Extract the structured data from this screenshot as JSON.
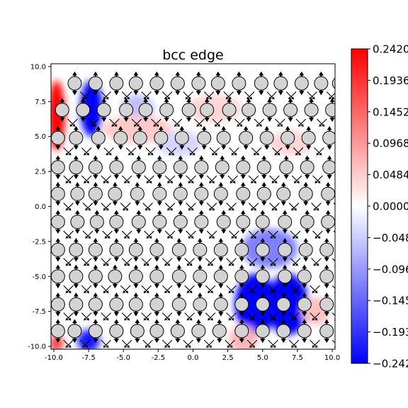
{
  "chart_data": {
    "type": "heatmap",
    "title": "bcc edge",
    "xlabel": "",
    "ylabel": "",
    "xlim": [
      -10.2,
      10.2
    ],
    "ylim": [
      -10.2,
      10.2
    ],
    "x_ticks": [
      "-10.0",
      "-7.5",
      "-5.0",
      "-2.5",
      "0.0",
      "2.5",
      "5.0",
      "7.5",
      "10.0"
    ],
    "y_ticks": [
      "10.0",
      "7.5",
      "5.0",
      "2.5",
      "0.0",
      "-2.5",
      "-5.0",
      "-7.5",
      "-10.0"
    ],
    "x_tick_values": [
      -10,
      -7.5,
      -5,
      -2.5,
      0,
      2.5,
      5,
      7.5,
      10
    ],
    "y_tick_values": [
      10,
      7.5,
      5,
      2.5,
      0,
      -2.5,
      -5,
      -7.5,
      -10
    ],
    "colorbar": {
      "colormap": "bwr",
      "min": -0.242,
      "max": 0.242,
      "tick_labels": [
        "0.2420",
        "0.1936",
        "0.1452",
        "0.0968",
        "0.0484",
        "0.0000",
        "−0.0484",
        "−0.0968",
        "−0.1452",
        "−0.1936",
        "−0.2420"
      ],
      "tick_values": [
        0.242,
        0.1936,
        0.1452,
        0.0968,
        0.0484,
        0,
        -0.0484,
        -0.0968,
        -0.1452,
        -0.1936,
        -0.242
      ],
      "colors": {
        "max": "#ff0000",
        "mid": "#ffffff",
        "min": "#0000ff"
      }
    },
    "atom_color": "#d3d3d3",
    "atom_rows": [
      {
        "y": 8.8,
        "x": [
          -8.5,
          -7.0,
          -5.5,
          -4.1,
          -2.6,
          -1.1,
          0.4,
          1.8,
          3.3,
          4.9,
          6.3,
          7.8,
          9.2,
          10.5
        ]
      },
      {
        "y": 6.9,
        "x": [
          -9.4,
          -7.9,
          -6.4,
          -4.8,
          -3.4,
          -1.9,
          -0.3,
          1.0,
          2.6,
          4.0,
          5.5,
          7.0,
          8.5,
          10.0
        ]
      },
      {
        "y": 4.9,
        "x": [
          -9.7,
          -8.4,
          -6.8,
          -5.2,
          -3.8,
          -2.3,
          -0.8,
          0.8,
          2.2,
          3.8,
          5.3,
          6.8,
          8.3,
          9.8
        ]
      },
      {
        "y": 2.8,
        "x": [
          -9.7,
          -8.4,
          -7.0,
          -5.5,
          -3.9,
          -2.4,
          -0.9,
          0.6,
          2.1,
          3.6,
          5.1,
          6.7,
          8.2,
          9.8
        ]
      },
      {
        "y": 0.9,
        "x": [
          -9.7,
          -8.3,
          -7.0,
          -5.6,
          -4.0,
          -2.4,
          -0.9,
          0.6,
          2.0,
          3.6,
          5.1,
          6.5,
          8.1,
          9.7
        ]
      },
      {
        "y": -1.1,
        "x": [
          -9.7,
          -8.3,
          -6.9,
          -5.5,
          -3.9,
          -2.4,
          -0.9,
          0.6,
          2.2,
          3.6,
          5.0,
          6.6,
          8.2,
          9.7
        ]
      },
      {
        "y": -3.1,
        "x": [
          -9.7,
          -8.4,
          -7.0,
          -5.5,
          -4.1,
          -2.6,
          -1.0,
          0.5,
          2.0,
          3.5,
          5.0,
          6.6,
          8.1,
          9.6
        ]
      },
      {
        "y": -5.0,
        "x": [
          -9.7,
          -8.4,
          -7.0,
          -5.6,
          -4.1,
          -2.6,
          -1.0,
          0.5,
          2.0,
          3.5,
          5.0,
          6.6,
          8.0,
          9.6
        ]
      },
      {
        "y": -7.0,
        "x": [
          -9.7,
          -8.4,
          -7.0,
          -5.5,
          -4.1,
          -2.6,
          -1.0,
          0.5,
          2.0,
          3.5,
          5.0,
          6.5,
          8.0,
          9.6
        ]
      },
      {
        "y": -8.9,
        "x": [
          -9.7,
          -8.5,
          -7.0,
          -5.5,
          -4.0,
          -2.6,
          -1.1,
          0.4,
          1.9,
          3.5,
          5.0,
          6.5,
          8.0,
          9.6
        ]
      }
    ],
    "field_regions": [
      {
        "x": -9.8,
        "y": 6.5,
        "value": 0.24,
        "rx": 0.6,
        "ry": 2.5
      },
      {
        "x": -7.3,
        "y": 7.0,
        "value": -0.24,
        "rx": 0.8,
        "ry": 2.0
      },
      {
        "x": -9.8,
        "y": -9.8,
        "value": 0.18,
        "rx": 0.5,
        "ry": 0.6
      },
      {
        "x": -7.5,
        "y": -9.6,
        "value": -0.22,
        "rx": 0.8,
        "ry": 0.8
      },
      {
        "x": 4.5,
        "y": -7.0,
        "value": -0.24,
        "rx": 1.5,
        "ry": 2.2
      },
      {
        "x": 6.8,
        "y": -7.0,
        "value": -0.24,
        "rx": 1.5,
        "ry": 2.2
      },
      {
        "x": 5.5,
        "y": -3.0,
        "value": -0.12,
        "rx": 2.0,
        "ry": 1.4
      },
      {
        "x": 3.6,
        "y": -9.5,
        "value": 0.07,
        "rx": 1.0,
        "ry": 1.0
      },
      {
        "x": 8.8,
        "y": -7.5,
        "value": 0.06,
        "rx": 1.0,
        "ry": 1.0
      },
      {
        "x": -4.0,
        "y": 7.0,
        "value": -0.06,
        "rx": 1.2,
        "ry": 1.0
      },
      {
        "x": -4.0,
        "y": 5.5,
        "value": 0.05,
        "rx": 2.5,
        "ry": 1.0
      },
      {
        "x": 1.5,
        "y": 7.0,
        "value": 0.04,
        "rx": 2.0,
        "ry": 1.0
      },
      {
        "x": -1.0,
        "y": 4.5,
        "value": -0.04,
        "rx": 1.6,
        "ry": 0.9
      },
      {
        "x": 7.0,
        "y": 4.5,
        "value": 0.04,
        "rx": 1.5,
        "ry": 0.9
      }
    ]
  }
}
